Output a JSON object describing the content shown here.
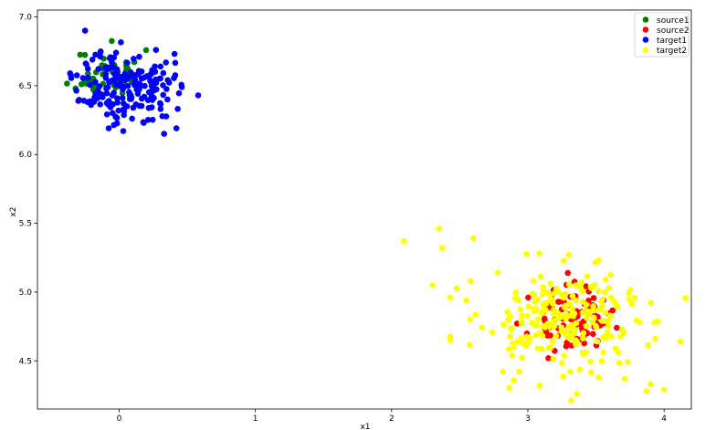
{
  "chart_data": {
    "type": "scatter",
    "xlabel": "x1",
    "ylabel": "x2",
    "xlim": [
      -0.6,
      4.2
    ],
    "ylim": [
      4.15,
      7.05
    ],
    "x_ticks": [
      0,
      1,
      2,
      3,
      4
    ],
    "y_ticks": [
      4.5,
      5.0,
      5.5,
      6.0,
      6.5,
      7.0
    ],
    "x_tick_labels": [
      "0",
      "1",
      "2",
      "3",
      "4"
    ],
    "y_tick_labels": [
      "4.5",
      "5.0",
      "5.5",
      "6.0",
      "6.5",
      "7.0"
    ],
    "grid": false,
    "legend_position": "top-right",
    "series": [
      {
        "name": "source1",
        "color": "#008000",
        "center": [
          -0.08,
          6.58
        ],
        "spread": [
          0.12,
          0.09
        ],
        "count": 60,
        "seed": 11
      },
      {
        "name": "source2",
        "color": "#ff0000",
        "center": [
          3.3,
          4.8
        ],
        "spread": [
          0.14,
          0.11
        ],
        "count": 90,
        "seed": 23
      },
      {
        "name": "target1",
        "color": "#0000ff",
        "center": [
          0.05,
          6.5
        ],
        "spread": [
          0.17,
          0.13
        ],
        "count": 190,
        "seed": 37,
        "extra": [
          [
            -0.25,
            6.9
          ],
          [
            0.27,
            6.76
          ],
          [
            0.58,
            6.43
          ],
          [
            0.46,
            6.49
          ],
          [
            0.42,
            6.19
          ],
          [
            0.33,
            6.15
          ],
          [
            -0.36,
            6.59
          ],
          [
            0.03,
            6.17
          ],
          [
            0.18,
            6.23
          ],
          [
            -0.3,
            6.39
          ]
        ]
      },
      {
        "name": "target2",
        "color": "#ffff00",
        "center": [
          3.28,
          4.78
        ],
        "spread": [
          0.32,
          0.2
        ],
        "count": 230,
        "seed": 53,
        "extra": [
          [
            2.09,
            5.37
          ],
          [
            2.35,
            5.46
          ],
          [
            2.37,
            5.32
          ],
          [
            2.6,
            5.39
          ],
          [
            2.3,
            5.05
          ],
          [
            2.43,
            4.96
          ],
          [
            2.43,
            4.65
          ],
          [
            2.58,
            5.08
          ],
          [
            3.52,
            5.23
          ],
          [
            3.36,
            4.26
          ],
          [
            3.87,
            4.28
          ],
          [
            3.9,
            4.33
          ],
          [
            4.12,
            4.64
          ],
          [
            4.0,
            4.29
          ],
          [
            3.74,
            4.99
          ],
          [
            2.78,
            5.14
          ]
        ]
      }
    ]
  }
}
